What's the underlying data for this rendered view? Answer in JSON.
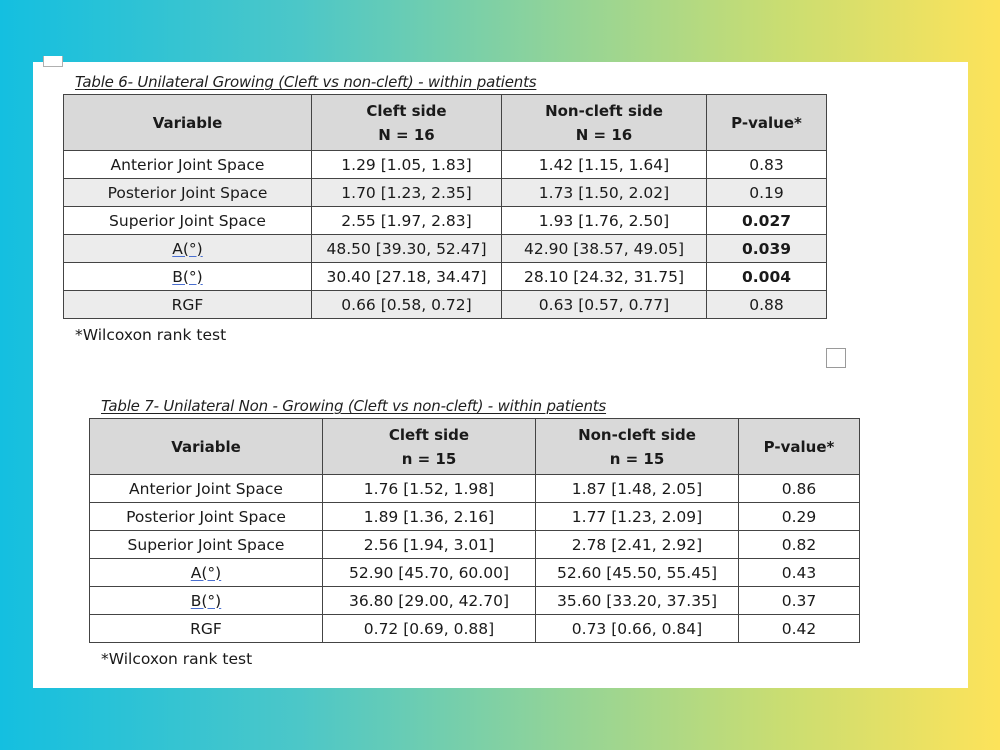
{
  "table6": {
    "caption": "Table 6- Unilateral Growing (Cleft vs non-cleft) - within patients",
    "headers": {
      "variable": "Variable",
      "cleft_title": "Cleft side",
      "cleft_n": "N = 16",
      "noncleft_title": "Non-cleft side",
      "noncleft_n": "N = 16",
      "pvalue": "P-value*"
    },
    "rows": [
      {
        "variable": "Anterior Joint Space",
        "cleft": "1.29 [1.05, 1.83]",
        "noncleft": "1.42 [1.15, 1.64]",
        "p": "0.83"
      },
      {
        "variable": "Posterior Joint Space",
        "cleft": "1.70 [1.23, 2.35]",
        "noncleft": "1.73 [1.50, 2.02]",
        "p": "0.19"
      },
      {
        "variable": "Superior Joint Space",
        "cleft": "2.55 [1.97, 2.83]",
        "noncleft": "1.93 [1.76, 2.50]",
        "p": "0.027"
      },
      {
        "variable": "A(°)",
        "cleft": "48.50 [39.30, 52.47]",
        "noncleft": "42.90 [38.57, 49.05]",
        "p": "0.039"
      },
      {
        "variable": "B(°)",
        "cleft": "30.40 [27.18, 34.47]",
        "noncleft": "28.10 [24.32, 31.75]",
        "p": "0.004"
      },
      {
        "variable": "RGF",
        "cleft": "0.66 [0.58, 0.72]",
        "noncleft": "0.63 [0.57, 0.77]",
        "p": "0.88"
      }
    ],
    "footnote": "*Wilcoxon rank test"
  },
  "table7": {
    "caption": "Table 7- Unilateral Non - Growing (Cleft vs non-cleft) - within patients",
    "headers": {
      "variable": "Variable",
      "cleft_title": "Cleft side",
      "cleft_n": "n = 15",
      "noncleft_title": "Non-cleft side",
      "noncleft_n": "n = 15",
      "pvalue": "P-value*"
    },
    "rows": [
      {
        "variable": "Anterior Joint Space",
        "cleft": "1.76 [1.52, 1.98]",
        "noncleft": "1.87 [1.48, 2.05]",
        "p": "0.86"
      },
      {
        "variable": "Posterior Joint Space",
        "cleft": "1.89 [1.36, 2.16]",
        "noncleft": "1.77 [1.23, 2.09]",
        "p": "0.29"
      },
      {
        "variable": "Superior Joint Space",
        "cleft": "2.56 [1.94, 3.01]",
        "noncleft": "2.78 [2.41, 2.92]",
        "p": "0.82"
      },
      {
        "variable": "A(°)",
        "cleft": "52.90 [45.70, 60.00]",
        "noncleft": "52.60 [45.50, 55.45]",
        "p": "0.43"
      },
      {
        "variable": "B(°)",
        "cleft": "36.80 [29.00, 42.70]",
        "noncleft": "35.60 [33.20, 37.35]",
        "p": "0.37"
      },
      {
        "variable": "RGF",
        "cleft": "0.72 [0.69, 0.88]",
        "noncleft": "0.73 [0.66, 0.84]",
        "p": "0.42"
      }
    ],
    "footnote": "*Wilcoxon rank test"
  }
}
